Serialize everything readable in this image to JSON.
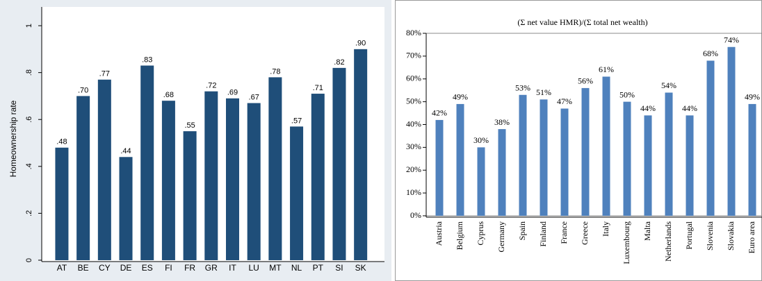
{
  "chart_data": [
    {
      "type": "bar",
      "y_label": "Homeownership rate",
      "categories": [
        "AT",
        "BE",
        "CY",
        "DE",
        "ES",
        "FI",
        "FR",
        "GR",
        "IT",
        "LU",
        "MT",
        "NL",
        "PT",
        "SI",
        "SK"
      ],
      "values": [
        0.48,
        0.7,
        0.77,
        0.44,
        0.83,
        0.68,
        0.55,
        0.72,
        0.69,
        0.67,
        0.78,
        0.57,
        0.71,
        0.82,
        0.9
      ],
      "value_labels": [
        ".48",
        ".70",
        ".77",
        ".44",
        ".83",
        ".68",
        ".55",
        ".72",
        ".69",
        ".67",
        ".78",
        ".57",
        ".71",
        ".82",
        ".90"
      ],
      "color": "#1f4e79",
      "ylim": [
        0,
        1.08
      ],
      "yticks": [
        0,
        {
          "value": 0.2,
          "label": ".2"
        },
        {
          "value": 0.4,
          "label": ".4"
        },
        {
          "value": 0.6,
          "label": ".6"
        },
        {
          "value": 0.8,
          "label": ".8"
        },
        1
      ]
    },
    {
      "type": "bar",
      "title": "(Σ net value HMR)/(Σ total net wealth)",
      "categories": [
        "Austria",
        "Belgium",
        "Cyprus",
        "Germany",
        "Spain",
        "Finland",
        "France",
        "Greece",
        "Italy",
        "Luxembourg",
        "Malta",
        "Netherlands",
        "Portugal",
        "Slovenia",
        "Slovakia",
        "Euro area"
      ],
      "values": [
        42,
        49,
        30,
        38,
        53,
        51,
        47,
        56,
        61,
        50,
        44,
        54,
        44,
        68,
        74,
        49
      ],
      "value_labels": [
        "42%",
        "49%",
        "30%",
        "38%",
        "53%",
        "51%",
        "47%",
        "56%",
        "61%",
        "50%",
        "44%",
        "54%",
        "44%",
        "68%",
        "74%",
        "49%"
      ],
      "color": "#4f81bd",
      "ylim": [
        0,
        80
      ],
      "yticks": [
        {
          "value": 0,
          "label": "0%"
        },
        {
          "value": 10,
          "label": "10%"
        },
        {
          "value": 20,
          "label": "20%"
        },
        {
          "value": 30,
          "label": "30%"
        },
        {
          "value": 40,
          "label": "40%"
        },
        {
          "value": 50,
          "label": "50%"
        },
        {
          "value": 60,
          "label": "60%"
        },
        {
          "value": 70,
          "label": "70%"
        },
        {
          "value": 80,
          "label": "80%"
        }
      ]
    }
  ]
}
